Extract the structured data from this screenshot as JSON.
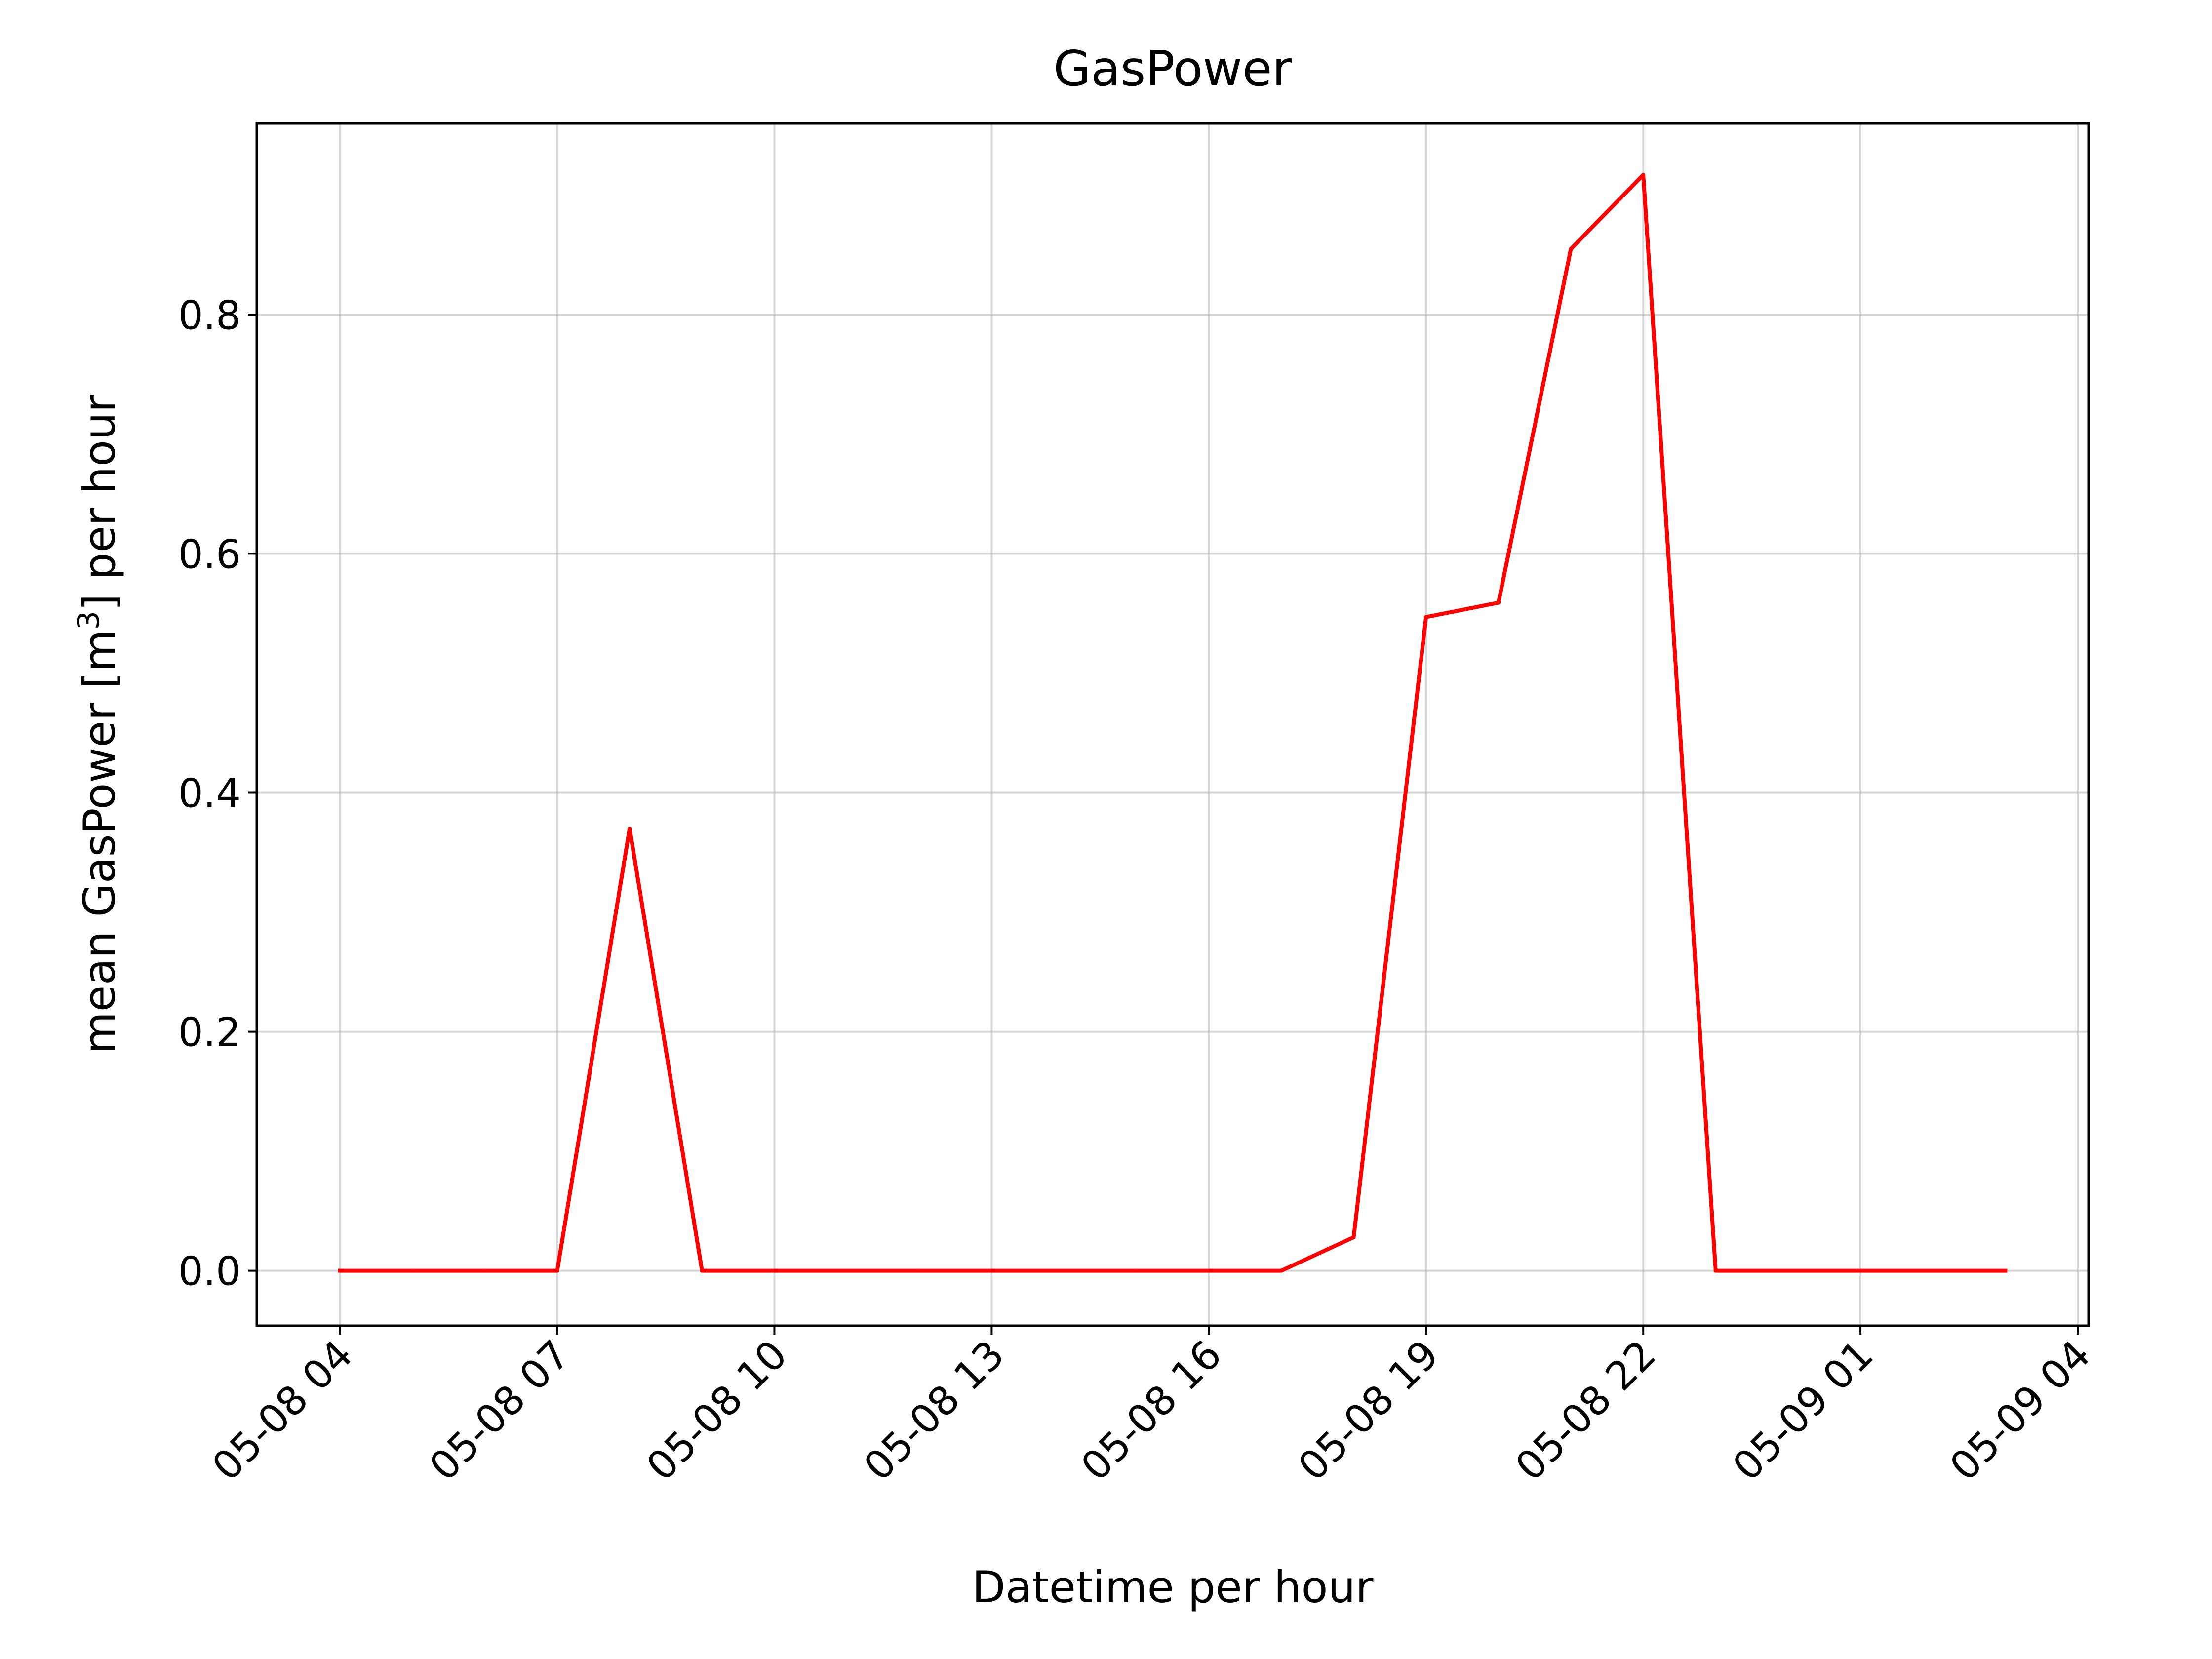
{
  "chart_data": {
    "type": "line",
    "title": "GasPower",
    "xlabel": "Datetime per hour",
    "ylabel_main": "mean GasPower [m",
    "ylabel_sup": "3",
    "ylabel_tail": "] per hour",
    "x_start": "05-08 04",
    "x_step_hours": 1,
    "xlim_hours": [
      -1.15,
      24.15
    ],
    "ylim": [
      -0.046,
      0.96
    ],
    "grid": true,
    "legend": "none",
    "series": [
      {
        "color": "#ff0000",
        "x": [
          "05-08 04",
          "05-08 05",
          "05-08 06",
          "05-08 07",
          "05-08 08",
          "05-08 09",
          "05-08 10",
          "05-08 11",
          "05-08 12",
          "05-08 13",
          "05-08 14",
          "05-08 15",
          "05-08 16",
          "05-08 17",
          "05-08 18",
          "05-08 19",
          "05-08 20",
          "05-08 21",
          "05-08 22",
          "05-08 23",
          "05-09 00",
          "05-09 01",
          "05-09 02",
          "05-09 03"
        ],
        "values": [
          0,
          0,
          0,
          0,
          0.37,
          0,
          0,
          0,
          0,
          0,
          0,
          0,
          0,
          0,
          0.028,
          0.547,
          0.559,
          0.855,
          0.917,
          0,
          0,
          0,
          0,
          0
        ]
      }
    ],
    "x_ticks": [
      {
        "label": "05-08 04",
        "hours": 0
      },
      {
        "label": "05-08 07",
        "hours": 3
      },
      {
        "label": "05-08 10",
        "hours": 6
      },
      {
        "label": "05-08 13",
        "hours": 9
      },
      {
        "label": "05-08 16",
        "hours": 12
      },
      {
        "label": "05-08 19",
        "hours": 15
      },
      {
        "label": "05-08 22",
        "hours": 18
      },
      {
        "label": "05-09 01",
        "hours": 21
      },
      {
        "label": "05-09 04",
        "hours": 24
      }
    ],
    "y_ticks": [
      {
        "label": "0.0",
        "value": 0
      },
      {
        "label": "0.2",
        "value": 0.2
      },
      {
        "label": "0.4",
        "value": 0.4
      },
      {
        "label": "0.6",
        "value": 0.6
      },
      {
        "label": "0.8",
        "value": 0.8
      }
    ]
  }
}
